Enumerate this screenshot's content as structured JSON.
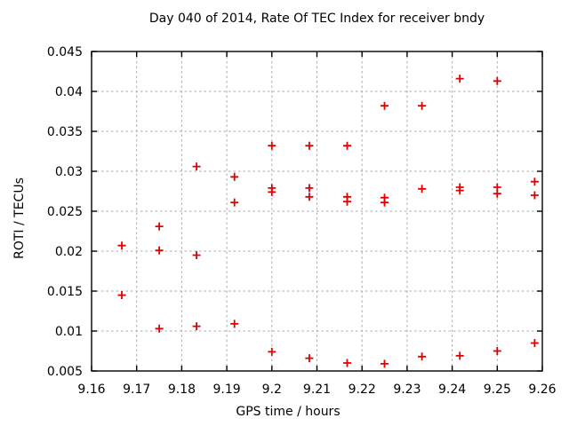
{
  "chart_data": {
    "type": "scatter",
    "title": "Day 040 of 2014, Rate Of TEC Index for receiver bndy",
    "xlabel": "GPS time / hours",
    "ylabel": "ROTI / TECUs",
    "xlim": [
      9.16,
      9.26
    ],
    "ylim": [
      0.005,
      0.045
    ],
    "grid": "dashed",
    "legend_position": "none",
    "marker_shape": "plus",
    "colors": {
      "marker": "#e00000",
      "grid": "#aaaaaa",
      "axis": "#000000",
      "background": "#ffffff"
    },
    "x_ticks": [
      {
        "v": 9.16,
        "label": "9.16"
      },
      {
        "v": 9.17,
        "label": "9.17"
      },
      {
        "v": 9.18,
        "label": "9.18"
      },
      {
        "v": 9.19,
        "label": "9.19"
      },
      {
        "v": 9.2,
        "label": "9.2"
      },
      {
        "v": 9.21,
        "label": "9.21"
      },
      {
        "v": 9.22,
        "label": "9.22"
      },
      {
        "v": 9.23,
        "label": "9.23"
      },
      {
        "v": 9.24,
        "label": "9.24"
      },
      {
        "v": 9.25,
        "label": "9.25"
      },
      {
        "v": 9.26,
        "label": "9.26"
      }
    ],
    "y_ticks": [
      {
        "v": 0.005,
        "label": "0.005"
      },
      {
        "v": 0.01,
        "label": "0.01"
      },
      {
        "v": 0.015,
        "label": "0.015"
      },
      {
        "v": 0.02,
        "label": "0.02"
      },
      {
        "v": 0.025,
        "label": "0.025"
      },
      {
        "v": 0.03,
        "label": "0.03"
      },
      {
        "v": 0.035,
        "label": "0.035"
      },
      {
        "v": 0.04,
        "label": "0.04"
      },
      {
        "v": 0.045,
        "label": "0.045"
      }
    ],
    "series": [
      {
        "name": "ROTI",
        "points": [
          [
            9.1667,
            0.0207
          ],
          [
            9.1667,
            0.0145
          ],
          [
            9.175,
            0.0231
          ],
          [
            9.175,
            0.0201
          ],
          [
            9.175,
            0.0103
          ],
          [
            9.1833,
            0.0306
          ],
          [
            9.1833,
            0.0195
          ],
          [
            9.1833,
            0.0106
          ],
          [
            9.1917,
            0.0293
          ],
          [
            9.1917,
            0.0261
          ],
          [
            9.1917,
            0.0109
          ],
          [
            9.2,
            0.0332
          ],
          [
            9.2,
            0.0279
          ],
          [
            9.2,
            0.0274
          ],
          [
            9.2,
            0.0074
          ],
          [
            9.2083,
            0.0332
          ],
          [
            9.2083,
            0.0279
          ],
          [
            9.2083,
            0.0268
          ],
          [
            9.2083,
            0.0066
          ],
          [
            9.2167,
            0.0332
          ],
          [
            9.2167,
            0.0268
          ],
          [
            9.2167,
            0.0262
          ],
          [
            9.2167,
            0.006
          ],
          [
            9.225,
            0.0382
          ],
          [
            9.225,
            0.0267
          ],
          [
            9.225,
            0.0261
          ],
          [
            9.225,
            0.0059
          ],
          [
            9.2333,
            0.0382
          ],
          [
            9.2333,
            0.0278
          ],
          [
            9.2333,
            0.0068
          ],
          [
            9.2417,
            0.0416
          ],
          [
            9.2417,
            0.028
          ],
          [
            9.2417,
            0.0276
          ],
          [
            9.2417,
            0.0069
          ],
          [
            9.25,
            0.0413
          ],
          [
            9.25,
            0.028
          ],
          [
            9.25,
            0.0272
          ],
          [
            9.25,
            0.0075
          ],
          [
            9.2583,
            0.0287
          ],
          [
            9.2583,
            0.027
          ],
          [
            9.2583,
            0.0085
          ]
        ]
      }
    ]
  }
}
